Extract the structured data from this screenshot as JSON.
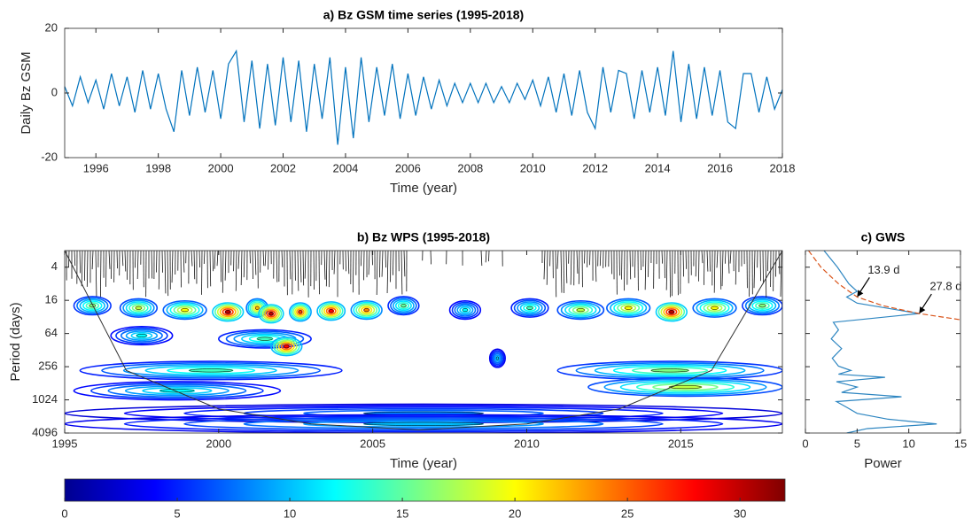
{
  "chart_data": [
    {
      "type": "line",
      "title": "a) Bz GSM time series (1995-2018)",
      "xlabel": "Time (year)",
      "ylabel": "Daily Bz GSM",
      "xlim": [
        1995,
        2018
      ],
      "xticks": [
        1996,
        1998,
        2000,
        2002,
        2004,
        2006,
        2008,
        2010,
        2012,
        2014,
        2016,
        2018
      ],
      "ylim": [
        -20,
        20
      ],
      "yticks": [
        -20,
        0,
        20
      ],
      "x": [
        1995,
        1995.25,
        1995.5,
        1995.75,
        1996,
        1996.25,
        1996.5,
        1996.75,
        1997,
        1997.25,
        1997.5,
        1997.75,
        1998,
        1998.25,
        1998.5,
        1998.75,
        1999,
        1999.25,
        1999.5,
        1999.75,
        2000,
        2000.25,
        2000.5,
        2000.75,
        2001,
        2001.25,
        2001.5,
        2001.75,
        2002,
        2002.25,
        2002.5,
        2002.75,
        2003,
        2003.25,
        2003.5,
        2003.75,
        2004,
        2004.25,
        2004.5,
        2004.75,
        2005,
        2005.25,
        2005.5,
        2005.75,
        2006,
        2006.25,
        2006.5,
        2006.75,
        2007,
        2007.25,
        2007.5,
        2007.75,
        2008,
        2008.25,
        2008.5,
        2008.75,
        2009,
        2009.25,
        2009.5,
        2009.75,
        2010,
        2010.25,
        2010.5,
        2010.75,
        2011,
        2011.25,
        2011.5,
        2011.75,
        2012,
        2012.25,
        2012.5,
        2012.75,
        2013,
        2013.25,
        2013.5,
        2013.75,
        2014,
        2014.25,
        2014.5,
        2014.75,
        2015,
        2015.25,
        2015.5,
        2015.75,
        2016,
        2016.25,
        2016.5,
        2016.75,
        2017,
        2017.25,
        2017.5,
        2017.75,
        2018
      ],
      "series": [
        {
          "color": "#0072bd",
          "values": [
            2,
            -4,
            5,
            -3,
            4,
            -5,
            6,
            -4,
            5,
            -6,
            7,
            -5,
            6,
            -5,
            -12,
            7,
            -7,
            8,
            -6,
            7,
            -8,
            9,
            13,
            -9,
            10,
            -11,
            9,
            -10,
            11,
            -9,
            10,
            -12,
            9,
            -8,
            11,
            -16,
            8,
            -14,
            11,
            -9,
            8,
            -7,
            9,
            -8,
            6,
            -7,
            5,
            -5,
            4,
            -4,
            3,
            -3,
            3,
            -3,
            3,
            -3,
            2,
            -3,
            3,
            -2,
            4,
            -4,
            5,
            -6,
            6,
            -7,
            7,
            -6,
            -11,
            8,
            -6,
            7,
            6,
            -8,
            7,
            -6,
            8,
            -7,
            13,
            -9,
            9,
            -8,
            8,
            -7,
            7,
            -9,
            -11,
            6,
            6,
            -6,
            5,
            -5,
            1
          ]
        }
      ]
    },
    {
      "type": "contour",
      "title": "b) Bz WPS (1995-2018)",
      "xlabel": "Time (year)",
      "ylabel": "Period (days)",
      "xlim": [
        1995,
        2018.3
      ],
      "xticks": [
        1995,
        2000,
        2005,
        2010,
        2015
      ],
      "ylim": [
        2,
        4096
      ],
      "yticks": [
        4,
        16,
        64,
        256,
        1024,
        4096
      ],
      "y_scale": "log",
      "y_reversed": true,
      "blobs": [
        {
          "x0": 1995.5,
          "x1": 2004,
          "y": 300,
          "value": 14
        },
        {
          "x0": 2011,
          "x1": 2018.3,
          "y": 300,
          "value": 16
        },
        {
          "x0": 1995.3,
          "x1": 2002,
          "y": 700,
          "value": 12
        },
        {
          "x0": 2012,
          "x1": 2018.3,
          "y": 600,
          "value": 18
        },
        {
          "x0": 1995,
          "x1": 2018.3,
          "y": 1800,
          "value": 8
        },
        {
          "x0": 1995,
          "x1": 2018.3,
          "y": 2800,
          "value": 10
        },
        {
          "x0": 2008.8,
          "x1": 2009.3,
          "y": 180,
          "value": 10
        },
        {
          "x0": 1996.5,
          "x1": 1998.5,
          "y": 70,
          "value": 12
        },
        {
          "x0": 2000,
          "x1": 2003,
          "y": 80,
          "value": 14
        },
        {
          "x0": 2001.7,
          "x1": 2002.7,
          "y": 110,
          "value": 28
        },
        {
          "x0": 1995.3,
          "x1": 1996.5,
          "y": 20,
          "value": 16
        },
        {
          "x0": 1996.8,
          "x1": 1998,
          "y": 22,
          "value": 18
        },
        {
          "x0": 1998.2,
          "x1": 1999.6,
          "y": 24,
          "value": 20
        },
        {
          "x0": 1999.8,
          "x1": 2000.8,
          "y": 26,
          "value": 30
        },
        {
          "x0": 2000.9,
          "x1": 2001.6,
          "y": 22,
          "value": 22
        },
        {
          "x0": 2001.3,
          "x1": 2002.1,
          "y": 28,
          "value": 30
        },
        {
          "x0": 2002.3,
          "x1": 2003,
          "y": 26,
          "value": 26
        },
        {
          "x0": 2003.2,
          "x1": 2004.1,
          "y": 25,
          "value": 28
        },
        {
          "x0": 2004.3,
          "x1": 2005.3,
          "y": 24,
          "value": 24
        },
        {
          "x0": 2005.5,
          "x1": 2006.5,
          "y": 20,
          "value": 15
        },
        {
          "x0": 2007.5,
          "x1": 2008.5,
          "y": 24,
          "value": 12
        },
        {
          "x0": 2009.5,
          "x1": 2010.7,
          "y": 22,
          "value": 14
        },
        {
          "x0": 2011,
          "x1": 2012.5,
          "y": 24,
          "value": 18
        },
        {
          "x0": 2012.6,
          "x1": 2014,
          "y": 22,
          "value": 20
        },
        {
          "x0": 2014.2,
          "x1": 2015.2,
          "y": 26,
          "value": 30
        },
        {
          "x0": 2015.4,
          "x1": 2016.8,
          "y": 22,
          "value": 20
        },
        {
          "x0": 2017,
          "x1": 2018.3,
          "y": 20,
          "value": 16
        }
      ],
      "coi": {
        "x": [
          1995,
          1997,
          2000,
          2003,
          2006.5,
          2010,
          2013,
          2016,
          2018.3
        ],
        "y": [
          2,
          300,
          1500,
          2800,
          3600,
          2800,
          1500,
          300,
          2
        ]
      },
      "colorbar": {
        "lim": [
          0,
          32
        ],
        "ticks": [
          0,
          5,
          10,
          15,
          20,
          25,
          30
        ]
      }
    },
    {
      "type": "line",
      "orientation": "horizontal",
      "title": "c) GWS",
      "xlabel": "Power",
      "xlim": [
        0,
        15
      ],
      "xticks": [
        0,
        5,
        10,
        15
      ],
      "ylim": [
        2,
        4096
      ],
      "yticks": [
        4,
        16,
        64,
        256,
        1024,
        4096
      ],
      "y_scale": "log",
      "y_reversed": true,
      "ytick_labels": false,
      "series": [
        {
          "color": "#2e86c1",
          "linestyle": "solid",
          "y": [
            2,
            4,
            8,
            11,
            13.9,
            18,
            27.8,
            40,
            55,
            80,
            120,
            180,
            250,
            300,
            350,
            400,
            480,
            600,
            750,
            900,
            1100,
            1400,
            1800,
            2300,
            2800,
            3400,
            4096
          ],
          "values": [
            1.8,
            3.1,
            4.2,
            5,
            4,
            5,
            11,
            2.7,
            3.2,
            2.5,
            3.5,
            2.6,
            3.2,
            4.4,
            3.2,
            7.7,
            3,
            5,
            3.5,
            9.3,
            3,
            4,
            5,
            8,
            12.7,
            6,
            4
          ]
        },
        {
          "color": "#d95319",
          "linestyle": "dashed",
          "y": [
            2,
            4,
            8,
            13.9,
            20,
            27.8,
            36
          ],
          "values": [
            0.3,
            1.5,
            3.2,
            5,
            7.5,
            11,
            15
          ]
        }
      ],
      "annotations": [
        {
          "text": "13.9 d",
          "x": 5,
          "y": 13.9
        },
        {
          "text": "27.8 d",
          "x": 11,
          "y": 27.8
        }
      ]
    }
  ]
}
